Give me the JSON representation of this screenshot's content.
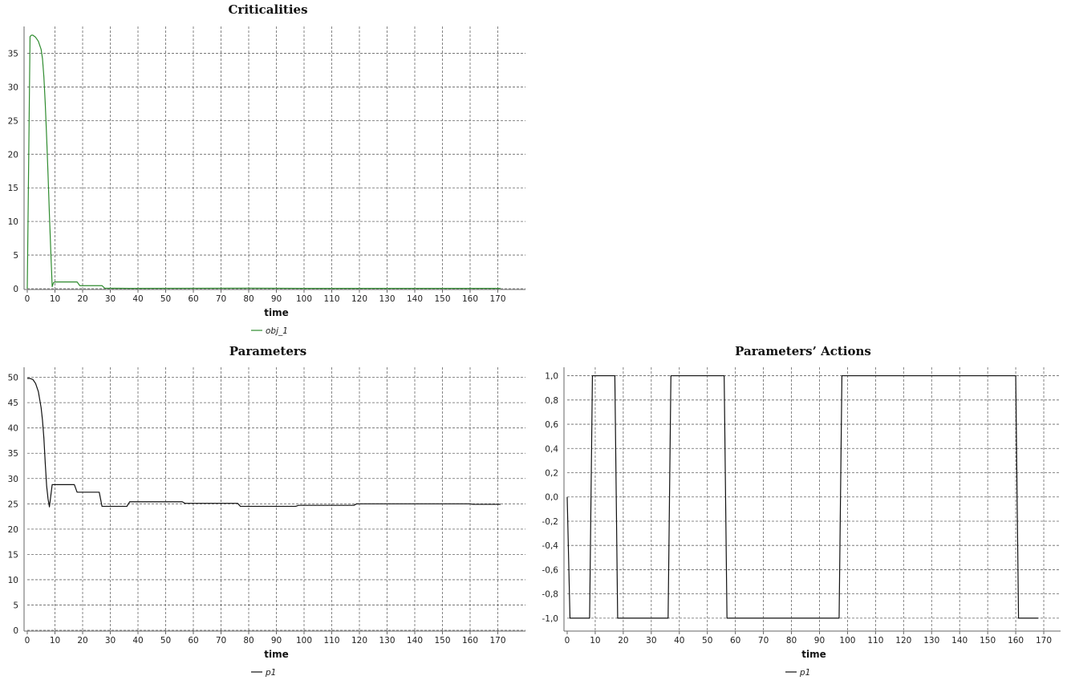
{
  "chart_data": [
    {
      "type": "line",
      "title": "Criticalities",
      "xlabel": "time",
      "ylabel": "",
      "xlim": [
        0,
        180
      ],
      "ylim": [
        0,
        39
      ],
      "xticks": [
        "0",
        "10",
        "20",
        "30",
        "40",
        "50",
        "60",
        "70",
        "80",
        "90",
        "100",
        "110",
        "120",
        "130",
        "140",
        "150",
        "160",
        "170"
      ],
      "yticks": [
        "0",
        "5",
        "10",
        "15",
        "20",
        "25",
        "30",
        "35"
      ],
      "grid": true,
      "legend_position": "bottom-center",
      "series": [
        {
          "name": "obj_1",
          "color": "#2e8b2e",
          "x": [
            0,
            1,
            1.5,
            2,
            3,
            4,
            5,
            5.5,
            6,
            6.5,
            7,
            7.5,
            8,
            8.5,
            9,
            9.5,
            10,
            18,
            19,
            27,
            28,
            37,
            80,
            100,
            171
          ],
          "y": [
            0,
            37.5,
            37.7,
            37.7,
            37.4,
            36.8,
            35.6,
            34.2,
            31.5,
            27.5,
            22.5,
            17,
            11,
            5.5,
            0.3,
            0.9,
            1,
            1,
            0.45,
            0.45,
            0.07,
            0.05,
            0.08,
            0.05,
            0.05
          ]
        }
      ]
    },
    {
      "type": "line",
      "title": "Parameters",
      "xlabel": "time",
      "ylabel": "",
      "xlim": [
        0,
        180
      ],
      "ylim": [
        0,
        52
      ],
      "xticks": [
        "0",
        "10",
        "20",
        "30",
        "40",
        "50",
        "60",
        "70",
        "80",
        "90",
        "100",
        "110",
        "120",
        "130",
        "140",
        "150",
        "160",
        "170"
      ],
      "yticks": [
        "0",
        "5",
        "10",
        "15",
        "20",
        "25",
        "30",
        "35",
        "40",
        "45",
        "50"
      ],
      "grid": true,
      "legend_position": "bottom-center",
      "series": [
        {
          "name": "p1",
          "color": "#111111",
          "x": [
            0,
            1,
            2,
            3,
            4,
            5,
            5.5,
            6,
            6.5,
            7,
            7.5,
            8,
            9,
            17,
            18,
            26,
            27,
            36,
            37,
            56,
            57,
            76,
            77,
            97,
            98,
            118,
            119,
            160,
            161,
            171
          ],
          "y": [
            49.8,
            49.8,
            49.6,
            48.8,
            47.2,
            44,
            41.5,
            38,
            33,
            28.5,
            26,
            24.4,
            28.8,
            28.8,
            27.3,
            27.3,
            24.5,
            24.5,
            25.4,
            25.4,
            25.1,
            25.1,
            24.5,
            24.5,
            24.7,
            24.7,
            25,
            25,
            24.9,
            24.9
          ]
        }
      ]
    },
    {
      "type": "line",
      "title": "Parameters’ Actions",
      "xlabel": "time",
      "ylabel": "",
      "xlim": [
        0,
        176
      ],
      "ylim": [
        -1.1,
        1.07
      ],
      "xticks": [
        "0",
        "10",
        "20",
        "30",
        "40",
        "50",
        "60",
        "70",
        "80",
        "90",
        "100",
        "110",
        "120",
        "130",
        "140",
        "150",
        "160",
        "170"
      ],
      "yticks": [
        "-1,0",
        "-0,8",
        "-0,6",
        "-0,4",
        "-0,2",
        "0,0",
        "0,2",
        "0,4",
        "0,6",
        "0,8",
        "1,0"
      ],
      "grid": true,
      "legend_position": "bottom-center",
      "series": [
        {
          "name": "p1",
          "color": "#111111",
          "x": [
            0,
            1,
            8,
            9,
            17,
            18,
            36,
            37,
            56,
            57,
            97,
            98,
            160,
            161,
            168
          ],
          "y": [
            0,
            -1,
            -1,
            1,
            1,
            -1,
            -1,
            1,
            1,
            -1,
            -1,
            1,
            1,
            -1,
            -1
          ]
        }
      ]
    }
  ]
}
